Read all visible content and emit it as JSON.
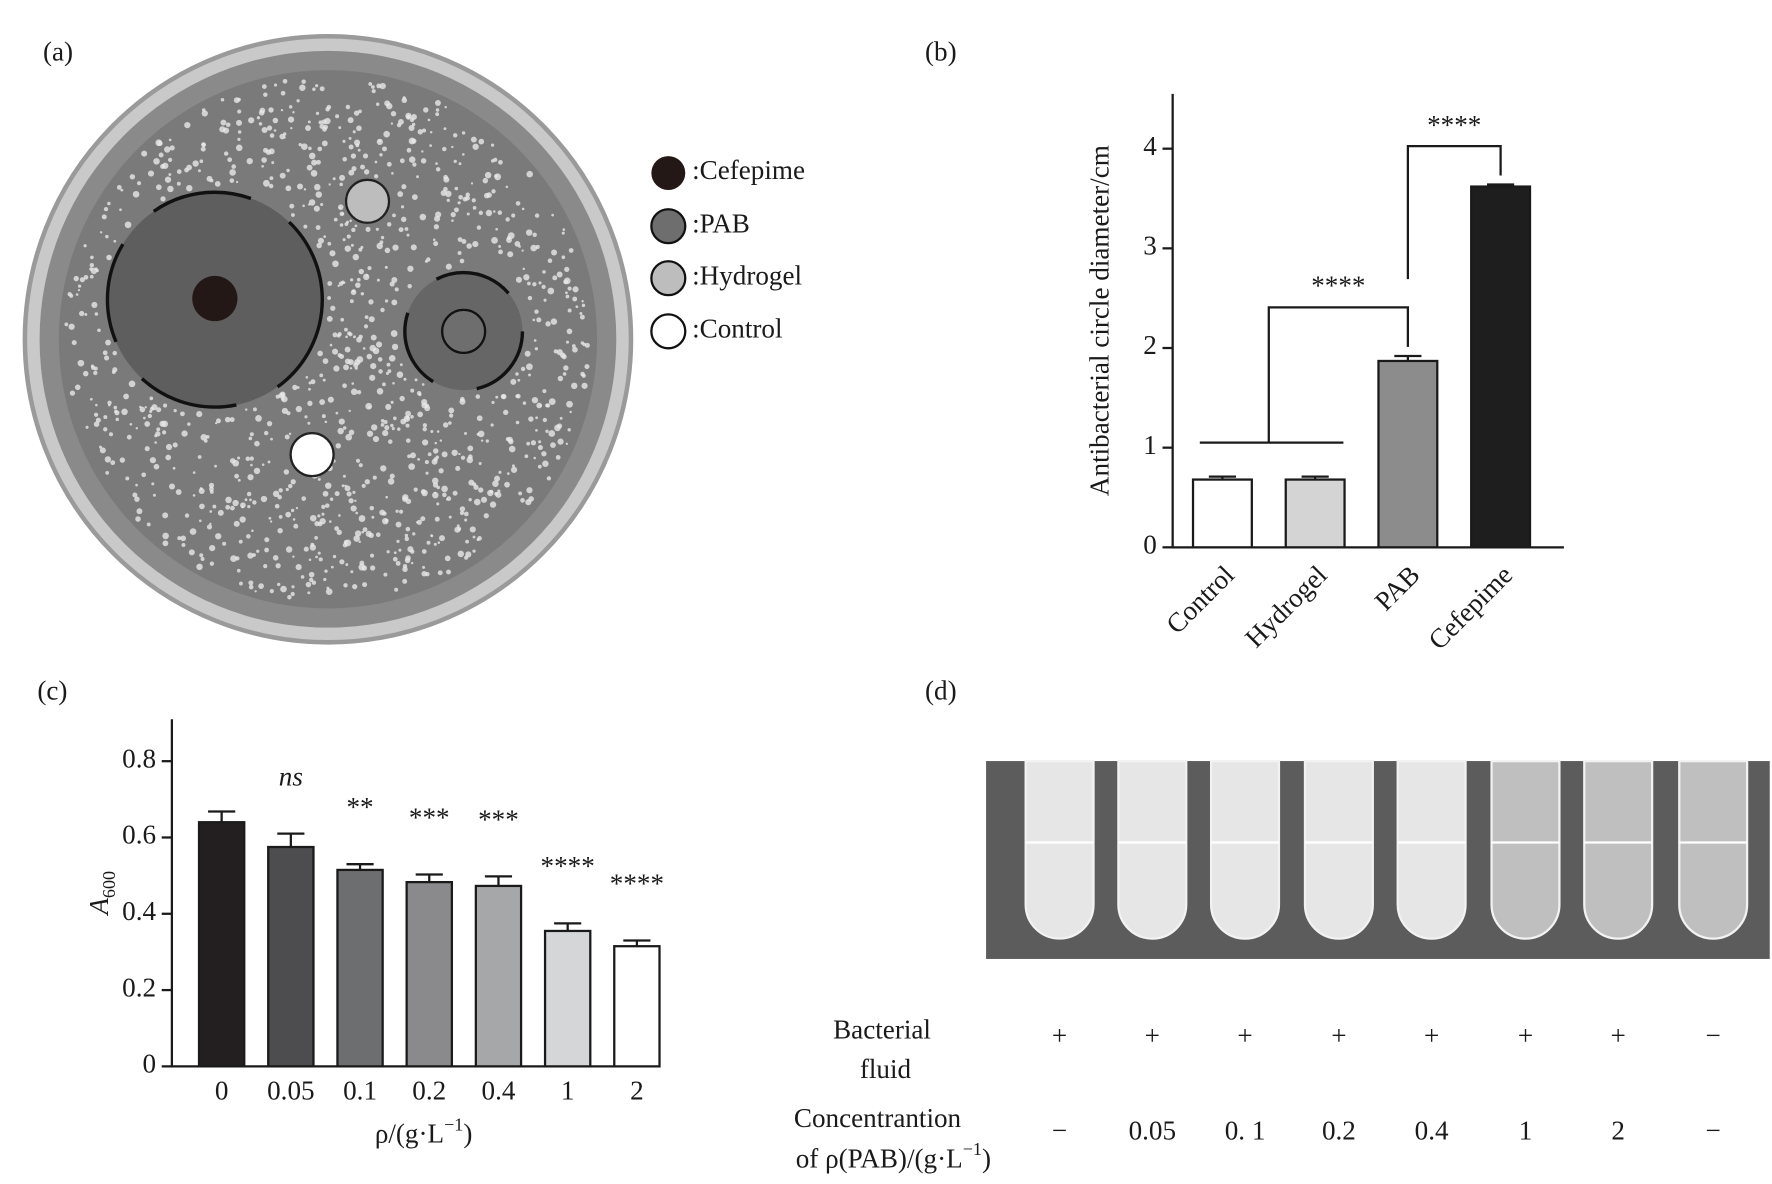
{
  "panel_labels": [
    "(a)",
    "(b)",
    "(c)",
    "(d)"
  ],
  "panel_a": {
    "legend": [
      ":Cefepime",
      ":PAB",
      ":Hydrogel",
      ":Control"
    ]
  },
  "chart_data": [
    {
      "type": "bar",
      "ylabel": "Antibacterial circle diameter/cm",
      "categories": [
        "Control",
        "Hydrogel",
        "PAB",
        "Cefepime"
      ],
      "values": [
        0.68,
        0.68,
        1.87,
        3.62
      ],
      "errors": [
        0.03,
        0.03,
        0.05,
        0.02
      ],
      "colors": [
        "#ffffff",
        "#d4d4d4",
        "#8c8c8c",
        "#1e1e1e"
      ],
      "ylim": [
        0,
        4.55
      ],
      "yticks": [
        0,
        1,
        2,
        3,
        4
      ],
      "grid": false,
      "annotations": [
        "****",
        "****"
      ]
    },
    {
      "type": "bar",
      "ylabel": "A",
      "ylabel_subscript": "600",
      "xlabel": "ρ/(g·L",
      "xlabel_superscript": "−1",
      "xlabel_end": ")",
      "categories": [
        "0",
        "0.05",
        "0.1",
        "0.2",
        "0.4",
        "1",
        "2"
      ],
      "values": [
        0.64,
        0.575,
        0.515,
        0.483,
        0.473,
        0.355,
        0.315
      ],
      "errors": [
        0.028,
        0.035,
        0.015,
        0.02,
        0.025,
        0.02,
        0.015
      ],
      "colors": [
        "#231f20",
        "#4d4d4f",
        "#6d6e70",
        "#8a8a8c",
        "#a6a7a9",
        "#d5d6d7",
        "#ffffff"
      ],
      "ylim": [
        0,
        0.91
      ],
      "yticks": [
        0,
        0.2,
        0.4,
        0.6,
        0.8
      ],
      "grid": false,
      "annotations": [
        null,
        "ns",
        "**",
        "***",
        "***",
        "****",
        "****"
      ]
    }
  ],
  "panel_d": {
    "rows": [
      {
        "label": [
          "Bacterial",
          "fluid"
        ],
        "cells": [
          "+",
          "+",
          "+",
          "+",
          "+",
          "+",
          "+",
          "−"
        ]
      },
      {
        "label": [
          "Concentrantion",
          "of ρ(PAB)/(g·L",
          "−1",
          ")"
        ],
        "cells": [
          "−",
          "0.05",
          "0. 1",
          "0.2",
          "0.4",
          "1",
          "2",
          "−"
        ]
      }
    ]
  }
}
